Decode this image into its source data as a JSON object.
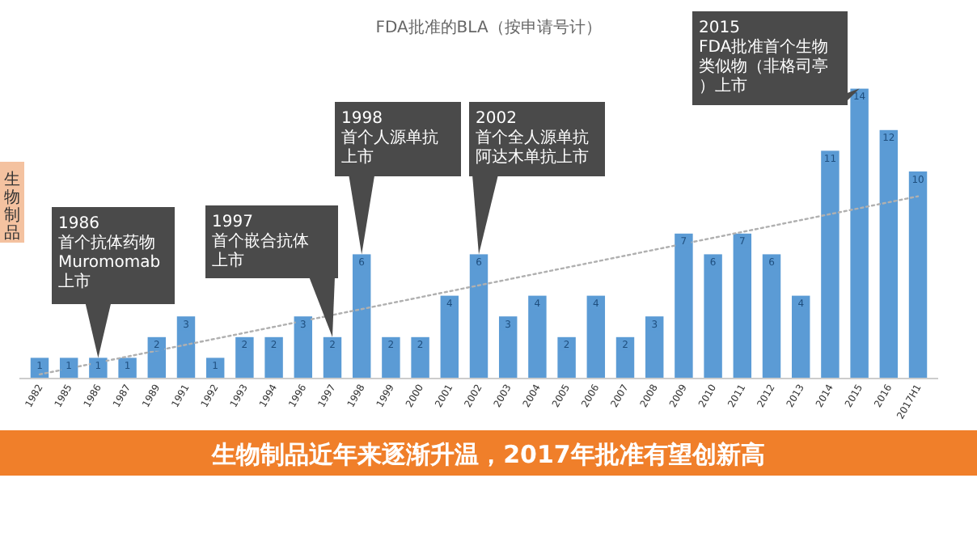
{
  "chart_data": {
    "type": "bar",
    "title": "FDA批准的BLA（按申请号计）",
    "ylabel": "生物制品",
    "categories": [
      "1982",
      "1985",
      "1986",
      "1987",
      "1989",
      "1991",
      "1992",
      "1993",
      "1994",
      "1996",
      "1997",
      "1998",
      "1999",
      "2000",
      "2001",
      "2002",
      "2003",
      "2004",
      "2005",
      "2006",
      "2007",
      "2008",
      "2009",
      "2010",
      "2011",
      "2012",
      "2013",
      "2014",
      "2015",
      "2016",
      "2017H1"
    ],
    "values": [
      1,
      1,
      1,
      1,
      2,
      3,
      1,
      2,
      2,
      3,
      2,
      6,
      2,
      2,
      4,
      6,
      3,
      4,
      2,
      4,
      2,
      3,
      7,
      6,
      7,
      6,
      4,
      11,
      14,
      12,
      10
    ],
    "value_labels": [
      "1",
      "1",
      "1",
      "1",
      "2",
      "3",
      "1",
      "2",
      "2",
      "3",
      "2",
      "6",
      "2",
      "2",
      "4",
      "6",
      "3",
      "4",
      "2",
      "4",
      "2",
      "3",
      "7",
      "6",
      "7",
      "6",
      "4",
      "11",
      "14",
      "12",
      "10"
    ],
    "color": "#5b9bd5",
    "series": [
      {
        "type": "line",
        "values": [
          0.2,
          null,
          null,
          null,
          null,
          null,
          null,
          null,
          null,
          null,
          null,
          null,
          null,
          null,
          null,
          null,
          null,
          null,
          null,
          null,
          null,
          null,
          null,
          null,
          null,
          null,
          null,
          null,
          null,
          null,
          8.8
        ],
        "color": "#b0b0b0",
        "line_style": "dotted"
      }
    ],
    "annotations": [
      {
        "text": "1986 首个抗体药物 Muromomab 上市",
        "x": "1986",
        "y": 1
      },
      {
        "text": "1997 首个嵌合抗体上市",
        "x": "1997",
        "y": 2
      },
      {
        "text": "1998 首个人源单抗上市",
        "x": "1998",
        "y": 6
      },
      {
        "text": "2002 首个全人源单抗阿达木单抗上市",
        "x": "2002",
        "y": 6
      },
      {
        "text": "2015 FDA批准首个生物类似物（非格司亭）上市",
        "x": "2015",
        "y": 14
      },
      "生物制品近年来逐渐升温，2017年批准有望创新高"
    ]
  }
}
